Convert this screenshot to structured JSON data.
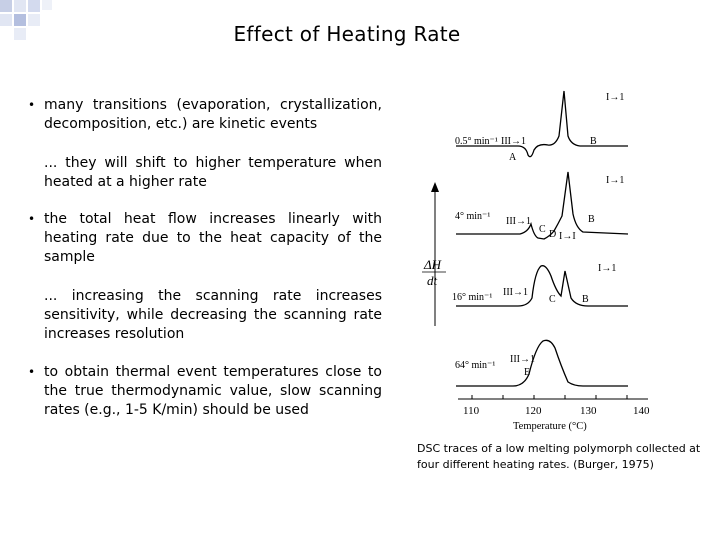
{
  "slide": {
    "title": "Effect of Heating Rate",
    "bullets": [
      "many transitions (evaporation, crystallization, decomposition, etc.) are kinetic events",
      "the total heat flow increases linearly with heating rate due to the heat capacity of the sample",
      "to obtain thermal event temperatures close to the true thermodynamic value, slow scanning rates (e.g., 1-5 K/min) should be used"
    ],
    "subpoints": [
      "... they will shift to higher temperature when heated at a higher rate",
      "... increasing the scanning rate increases sensitivity, while decreasing the scanning rate increases resolution"
    ],
    "bullet_glyph": "•",
    "caption": "DSC traces of a low melting polymorph collected at four different heating rates. (Burger, 1975)"
  },
  "figure": {
    "ylabel_top": "ΔH",
    "ylabel_bottom": "dt",
    "xlabel": "Temperature (°C)",
    "x_ticks": [
      "110",
      "120",
      "130",
      "140"
    ],
    "traces": [
      {
        "rate": "0.5° min⁻¹",
        "labels": [
          "I→1",
          "III→1",
          "A",
          "B"
        ]
      },
      {
        "rate": "4° min⁻¹",
        "labels": [
          "I→1",
          "III→1",
          "C",
          "D",
          "I→I",
          "B"
        ]
      },
      {
        "rate": "16° min⁻¹",
        "labels": [
          "I→1",
          "III→1",
          "C",
          "B"
        ]
      },
      {
        "rate": "64° min⁻¹",
        "labels": [
          "III→1",
          "E"
        ]
      }
    ]
  }
}
